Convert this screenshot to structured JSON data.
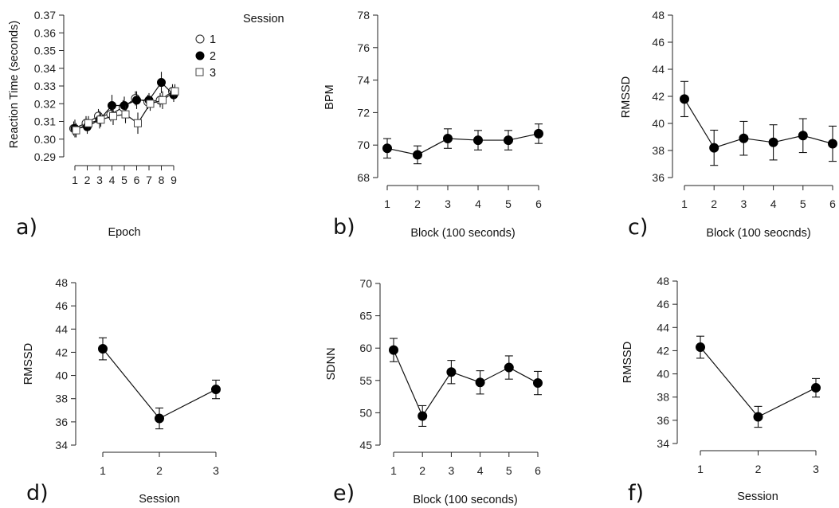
{
  "chart_data": [
    {
      "id": "a",
      "type": "line",
      "panel_label": "a)",
      "xlabel": "Epoch",
      "ylabel": "Reaction Time (seconds)",
      "x": [
        1,
        2,
        3,
        4,
        5,
        6,
        7,
        8,
        9
      ],
      "xticks": [
        "1",
        "2",
        "3",
        "4",
        "5",
        "6",
        "7",
        "8",
        "9"
      ],
      "yticks": [
        "0.29",
        "0.30",
        "0.31",
        "0.32",
        "0.33",
        "0.34",
        "0.35",
        "0.36",
        "0.37"
      ],
      "ylim": [
        0.29,
        0.37
      ],
      "legend": {
        "title": "Session",
        "placement": "top-right"
      },
      "series": [
        {
          "name": "1",
          "marker": "open-circle",
          "values": [
            0.306,
            0.309,
            0.313,
            0.314,
            0.318,
            0.323,
            0.321,
            0.322,
            0.327
          ],
          "errors": [
            0.004,
            0.004,
            0.004,
            0.004,
            0.004,
            0.004,
            0.004,
            0.004,
            0.004
          ]
        },
        {
          "name": "2",
          "marker": "filled-circle",
          "values": [
            0.306,
            0.307,
            0.311,
            0.319,
            0.319,
            0.322,
            0.322,
            0.332,
            0.325
          ],
          "errors": [
            0.005,
            0.004,
            0.005,
            0.006,
            0.005,
            0.005,
            0.004,
            0.006,
            0.004
          ]
        },
        {
          "name": "3",
          "marker": "open-square",
          "values": [
            0.305,
            0.309,
            0.311,
            0.313,
            0.314,
            0.309,
            0.32,
            0.322,
            0.327
          ],
          "errors": [
            0.004,
            0.004,
            0.004,
            0.005,
            0.005,
            0.006,
            0.004,
            0.005,
            0.004
          ]
        }
      ]
    },
    {
      "id": "b",
      "type": "line",
      "panel_label": "b)",
      "xlabel": "Block (100 seconds)",
      "ylabel": "BPM",
      "x": [
        1,
        2,
        3,
        4,
        5,
        6
      ],
      "xticks": [
        "1",
        "2",
        "3",
        "4",
        "5",
        "6"
      ],
      "yticks": [
        "68",
        "70",
        "72",
        "74",
        "76",
        "78"
      ],
      "ylim": [
        68,
        78
      ],
      "series": [
        {
          "values": [
            69.8,
            69.4,
            70.4,
            70.3,
            70.3,
            70.7
          ],
          "errors": [
            0.6,
            0.55,
            0.6,
            0.6,
            0.6,
            0.6
          ]
        }
      ]
    },
    {
      "id": "c",
      "type": "line",
      "panel_label": "c)",
      "xlabel": "Block (100 seocnds)",
      "ylabel": "RMSSD",
      "x": [
        1,
        2,
        3,
        4,
        5,
        6
      ],
      "xticks": [
        "1",
        "2",
        "3",
        "4",
        "5",
        "6"
      ],
      "yticks": [
        "36",
        "38",
        "40",
        "42",
        "44",
        "46",
        "48"
      ],
      "ylim": [
        36,
        48
      ],
      "series": [
        {
          "values": [
            41.8,
            38.2,
            38.9,
            38.6,
            39.1,
            38.5
          ],
          "errors": [
            1.3,
            1.3,
            1.25,
            1.3,
            1.25,
            1.3
          ]
        }
      ]
    },
    {
      "id": "d",
      "type": "line",
      "panel_label": "d)",
      "xlabel": "Session",
      "ylabel": "RMSSD",
      "x": [
        1,
        2,
        3
      ],
      "xticks": [
        "1",
        "2",
        "3"
      ],
      "yticks": [
        "34",
        "36",
        "38",
        "40",
        "42",
        "44",
        "46",
        "48"
      ],
      "ylim": [
        34,
        48
      ],
      "series": [
        {
          "values": [
            42.3,
            36.3,
            38.8
          ],
          "errors": [
            0.95,
            0.9,
            0.8
          ]
        }
      ]
    },
    {
      "id": "e",
      "type": "line",
      "panel_label": "e)",
      "xlabel": "Block (100 seconds)",
      "ylabel": "SDNN",
      "x": [
        1,
        2,
        3,
        4,
        5,
        6
      ],
      "xticks": [
        "1",
        "2",
        "3",
        "4",
        "5",
        "6"
      ],
      "yticks": [
        "45",
        "50",
        "55",
        "60",
        "65",
        "70"
      ],
      "ylim": [
        45,
        70
      ],
      "series": [
        {
          "values": [
            59.7,
            49.5,
            56.3,
            54.7,
            57.0,
            54.6
          ],
          "errors": [
            1.8,
            1.6,
            1.8,
            1.8,
            1.8,
            1.8
          ]
        }
      ]
    },
    {
      "id": "f",
      "type": "line",
      "panel_label": "f)",
      "xlabel": "Session",
      "ylabel": "RMSSD",
      "x": [
        1,
        2,
        3
      ],
      "xticks": [
        "1",
        "2",
        "3"
      ],
      "yticks": [
        "34",
        "36",
        "38",
        "40",
        "42",
        "44",
        "46",
        "48"
      ],
      "ylim": [
        34,
        48
      ],
      "series": [
        {
          "values": [
            42.3,
            36.3,
            38.8
          ],
          "errors": [
            0.95,
            0.9,
            0.8
          ]
        }
      ]
    }
  ]
}
